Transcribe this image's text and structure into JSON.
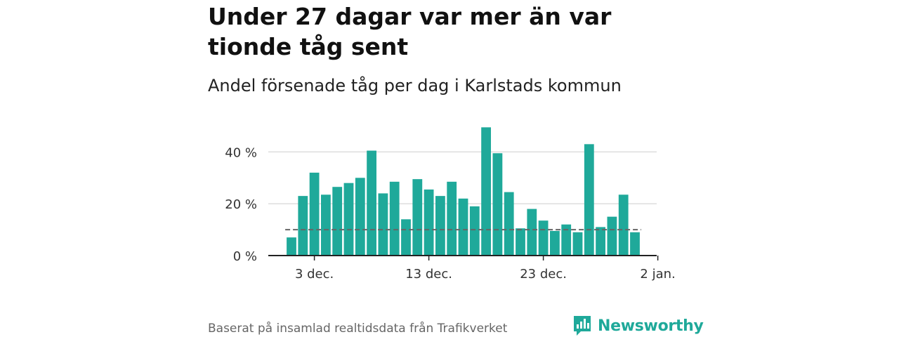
{
  "header": {
    "title": "Under 27 dagar var mer än var tionde tåg sent",
    "subtitle": "Andel försenade tåg per dag i Karlstads kommun"
  },
  "footer": {
    "source": "Baserat på insamlad realtidsdata från Trafikverket",
    "brand": "Newsworthy"
  },
  "colors": {
    "bar": "#1fa99a",
    "reference_line": "#666666",
    "grid": "#dddddd",
    "brand": "#1fa99a"
  },
  "chart_data": {
    "type": "bar",
    "title": "Under 27 dagar var mer än var tionde tåg sent",
    "subtitle": "Andel försenade tåg per dag i Karlstads kommun",
    "xlabel": "",
    "ylabel": "",
    "ylim": [
      0,
      50
    ],
    "y_ticks": [
      0,
      20,
      40
    ],
    "y_tick_labels": [
      "0 %",
      "20 %",
      "40 %"
    ],
    "x_ticks": [
      {
        "index": 2,
        "label": "3 dec."
      },
      {
        "index": 12,
        "label": "13 dec."
      },
      {
        "index": 22,
        "label": "23 dec."
      },
      {
        "index": 32,
        "label": "2 jan."
      }
    ],
    "dates": [
      "1 dec.",
      "2 dec.",
      "3 dec.",
      "4 dec.",
      "5 dec.",
      "6 dec.",
      "7 dec.",
      "8 dec.",
      "9 dec.",
      "10 dec.",
      "11 dec.",
      "12 dec.",
      "13 dec.",
      "14 dec.",
      "15 dec.",
      "16 dec.",
      "17 dec.",
      "18 dec.",
      "19 dec.",
      "20 dec.",
      "21 dec.",
      "22 dec.",
      "23 dec.",
      "24 dec.",
      "25 dec.",
      "26 dec.",
      "27 dec.",
      "28 dec.",
      "29 dec.",
      "30 dec.",
      "31 dec."
    ],
    "values": [
      7,
      23,
      32,
      23.5,
      26.5,
      28,
      30,
      40.5,
      24,
      28.5,
      14,
      29.5,
      25.5,
      23,
      28.5,
      22,
      19,
      49.5,
      39.5,
      24.5,
      10.5,
      18,
      13.5,
      9.5,
      12,
      9,
      43,
      11,
      15,
      23.5,
      9
    ],
    "reference_line": 10,
    "grid": true,
    "legend": "none"
  }
}
